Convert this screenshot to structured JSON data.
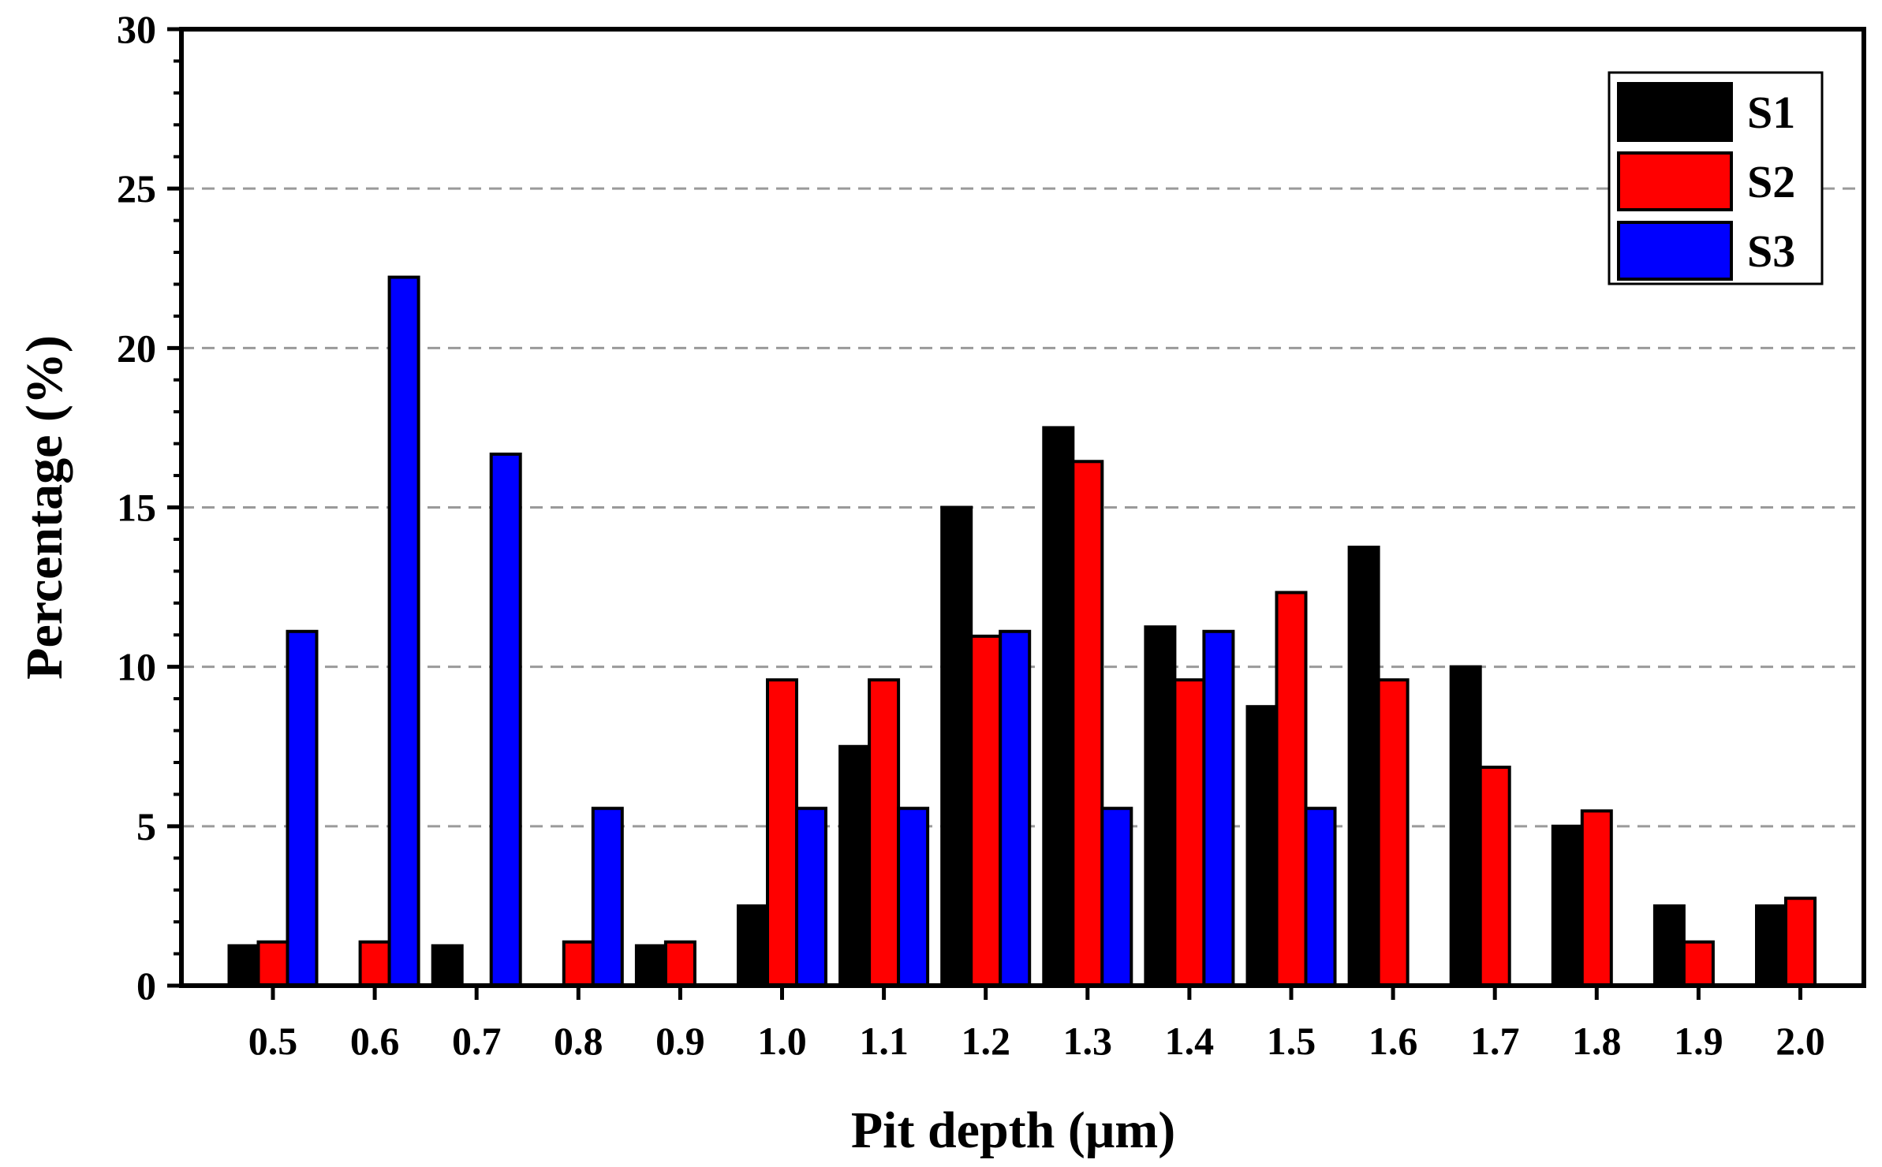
{
  "chart_data": {
    "type": "bar",
    "title": "",
    "xlabel": "Pit depth (μm)",
    "ylabel": "Percentage (%)",
    "ylim": [
      0,
      30
    ],
    "yticks": [
      0,
      5,
      10,
      15,
      20,
      25,
      30
    ],
    "ytick_labels": [
      "0",
      "5",
      "10",
      "15",
      "20",
      "25",
      "30"
    ],
    "grid": "horizontal-dashed",
    "legend_position": "top-right",
    "categories": [
      "0.5",
      "0.6",
      "0.7",
      "0.8",
      "0.9",
      "1.0",
      "1.1",
      "1.2",
      "1.3",
      "1.4",
      "1.5",
      "1.6",
      "1.7",
      "1.8",
      "1.9",
      "2.0"
    ],
    "series": [
      {
        "name": "S1",
        "color": "#000000",
        "values": [
          1.25,
          0,
          1.25,
          0,
          1.25,
          2.5,
          7.5,
          15.0,
          17.5,
          11.25,
          8.75,
          13.75,
          10.0,
          5.0,
          2.5,
          2.5
        ]
      },
      {
        "name": "S2",
        "color": "#ff0000",
        "values": [
          1.37,
          1.37,
          0,
          1.37,
          1.37,
          9.59,
          9.59,
          10.96,
          16.44,
          9.59,
          12.33,
          9.59,
          6.85,
          5.48,
          1.37,
          2.74
        ]
      },
      {
        "name": "S3",
        "color": "#0000ff",
        "values": [
          11.11,
          22.22,
          16.67,
          5.56,
          0,
          5.56,
          5.56,
          11.11,
          5.56,
          11.11,
          5.56,
          0,
          0,
          0,
          0,
          0
        ]
      }
    ]
  }
}
